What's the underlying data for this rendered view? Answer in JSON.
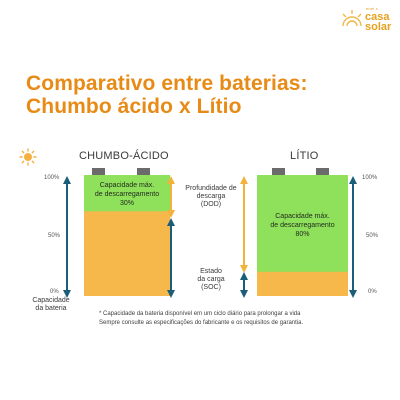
{
  "brand": {
    "line1": "enel x",
    "line2": "casa",
    "line3": "solar"
  },
  "title": {
    "line1": "Comparativo entre baterias:",
    "line2": "Chumbo ácido x Lítio"
  },
  "lead_acid": {
    "name": "CHUMBO-ÁCIDO",
    "label_line1": "Capacidade máx.",
    "label_line2": "de descarregamento",
    "label_line3": "30%",
    "dod_fraction": 0.3
  },
  "lithium": {
    "name": "LÍTIO",
    "label_line1": "Capacidade máx.",
    "label_line2": "de descarregamento",
    "label_line3": "80%",
    "dod_fraction": 0.8
  },
  "scale": {
    "p100": "100%",
    "p50": "50%",
    "p0": "0%"
  },
  "dod_label": {
    "line1": "Profundidade de",
    "line2": "descarga",
    "line3": "(DOD)"
  },
  "soc_label": {
    "line1": "Estado",
    "line2": "da carga",
    "line3": "(SOC)"
  },
  "capacity_label": {
    "line1": "Capacidade",
    "line2": "da bateria"
  },
  "footnote": {
    "line1": "* Capacidade da bateria disponível em um ciclo diário para prolongar a vida",
    "line2": "Sempre consulte as especificações do fabricante e os requisitos de garantia."
  },
  "colors": {
    "dod_green": "#8fe05a",
    "soc_orange": "#f6b84a",
    "terminal_gray": "#6b6b6b",
    "arrow_blue": "#1b5e7a",
    "arrow_orange": "#f2b33c",
    "title_orange": "#e88b16"
  },
  "icons": {
    "sun": "sun-icon",
    "logo": "sun-logo-icon"
  }
}
